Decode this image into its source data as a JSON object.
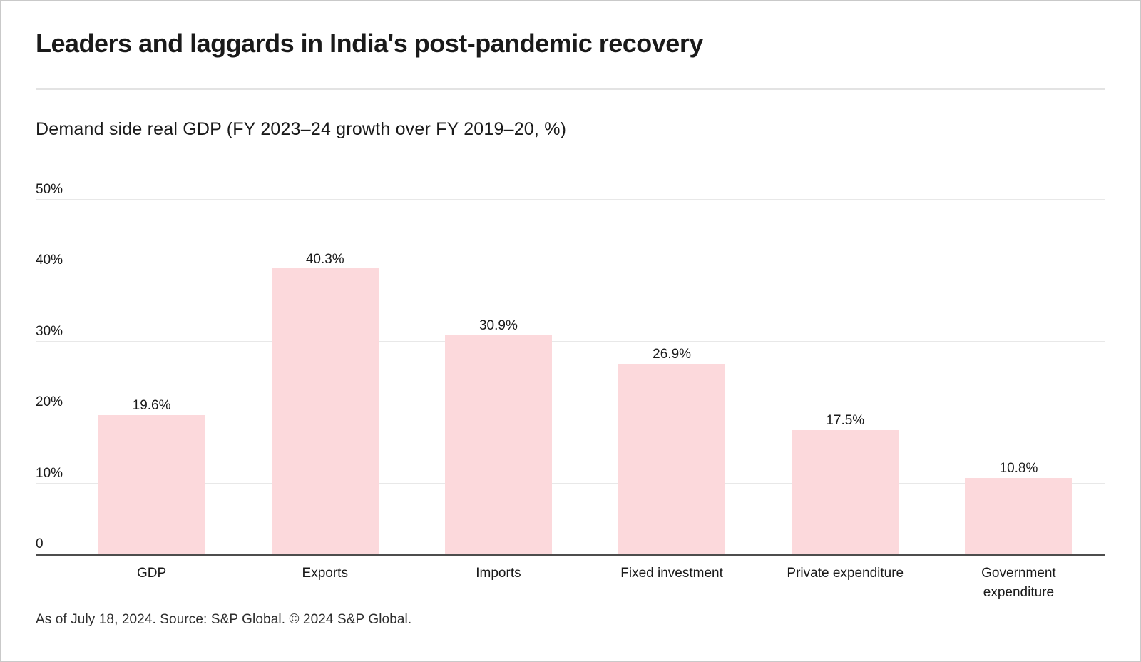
{
  "header": {
    "title": "Leaders and laggards in India's post-pandemic recovery",
    "subtitle": "Demand side real GDP (FY 2023–24 growth over FY 2019–20, %)"
  },
  "chart_data": {
    "type": "bar",
    "title": "Demand side real GDP (FY 2023–24 growth over FY 2019–20, %)",
    "categories": [
      "GDP",
      "Exports",
      "Imports",
      "Fixed investment",
      "Private expenditure",
      "Government expenditure"
    ],
    "values": [
      19.6,
      40.3,
      30.9,
      26.9,
      17.5,
      10.8
    ],
    "value_labels": [
      "19.6%",
      "40.3%",
      "30.9%",
      "26.9%",
      "17.5%",
      "10.8%"
    ],
    "xlabel": "",
    "ylabel": "",
    "ylim": [
      0,
      50
    ],
    "yticks": [
      0,
      10,
      20,
      30,
      40,
      50
    ],
    "ytick_labels": [
      "0",
      "10%",
      "20%",
      "30%",
      "40%",
      "50%"
    ],
    "grid": true,
    "legend": false,
    "bar_color": "#fcd9dc"
  },
  "footer": {
    "text": "As of July 18, 2024. Source: S&P Global. © 2024 S&P Global."
  },
  "colors": {
    "bar": "#fcd9dc",
    "grid": "#e8e8e8",
    "axis": "#4d4d4d",
    "text": "#1a1a1a",
    "divider": "#e3e3e3",
    "border": "#c9c9c9"
  }
}
